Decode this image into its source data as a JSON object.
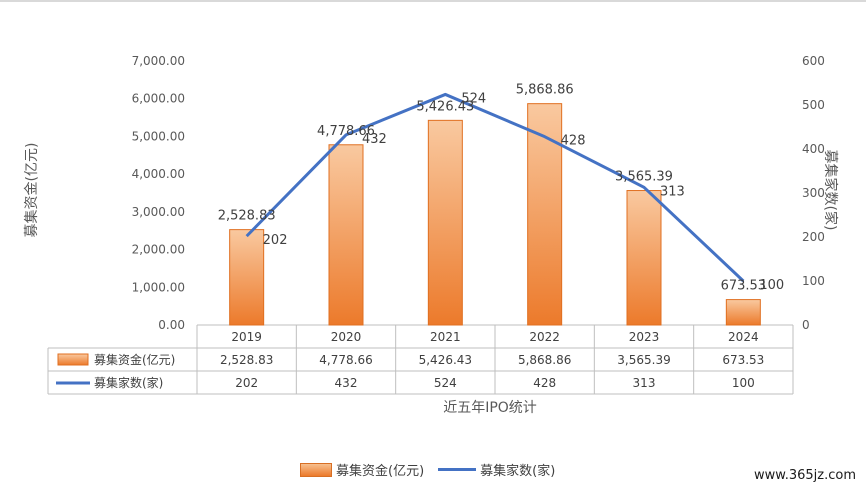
{
  "chart_data": {
    "type": "bar",
    "categories": [
      "2019",
      "2020",
      "2021",
      "2022",
      "2023",
      "2024"
    ],
    "series": [
      {
        "name": "募集资金(亿元)",
        "kind": "bar",
        "axis": "left",
        "values": [
          2528.83,
          4778.66,
          5426.43,
          5868.86,
          3565.39,
          673.53
        ],
        "labels": [
          "2,528.83",
          "4,778.66",
          "5,426.43",
          "5,868.86",
          "3,565.39",
          "673.53"
        ],
        "color": "#ed7d31"
      },
      {
        "name": "募集家数(家)",
        "kind": "line",
        "axis": "right",
        "values": [
          202,
          432,
          524,
          428,
          313,
          100
        ],
        "labels": [
          "202",
          "432",
          "524",
          "428",
          "313",
          "100"
        ],
        "color": "#4472c4"
      }
    ],
    "y_left": {
      "label": "募集资金(亿元)",
      "range": [
        0,
        7000
      ],
      "ticks": [
        "0.00",
        "1,000.00",
        "2,000.00",
        "3,000.00",
        "4,000.00",
        "5,000.00",
        "6,000.00",
        "7,000.00"
      ]
    },
    "y_right": {
      "label": "募集家数(家)",
      "range": [
        0,
        600
      ],
      "ticks": [
        "0",
        "100",
        "200",
        "300",
        "400",
        "500",
        "600"
      ]
    },
    "xlabel": "近五年IPO统计",
    "grid": false,
    "legend": "bottom",
    "data_table": true
  },
  "legend": {
    "bar_label": "募集资金(亿元)",
    "line_label": "募集家数(家)"
  },
  "watermark": "www.365jz.com"
}
